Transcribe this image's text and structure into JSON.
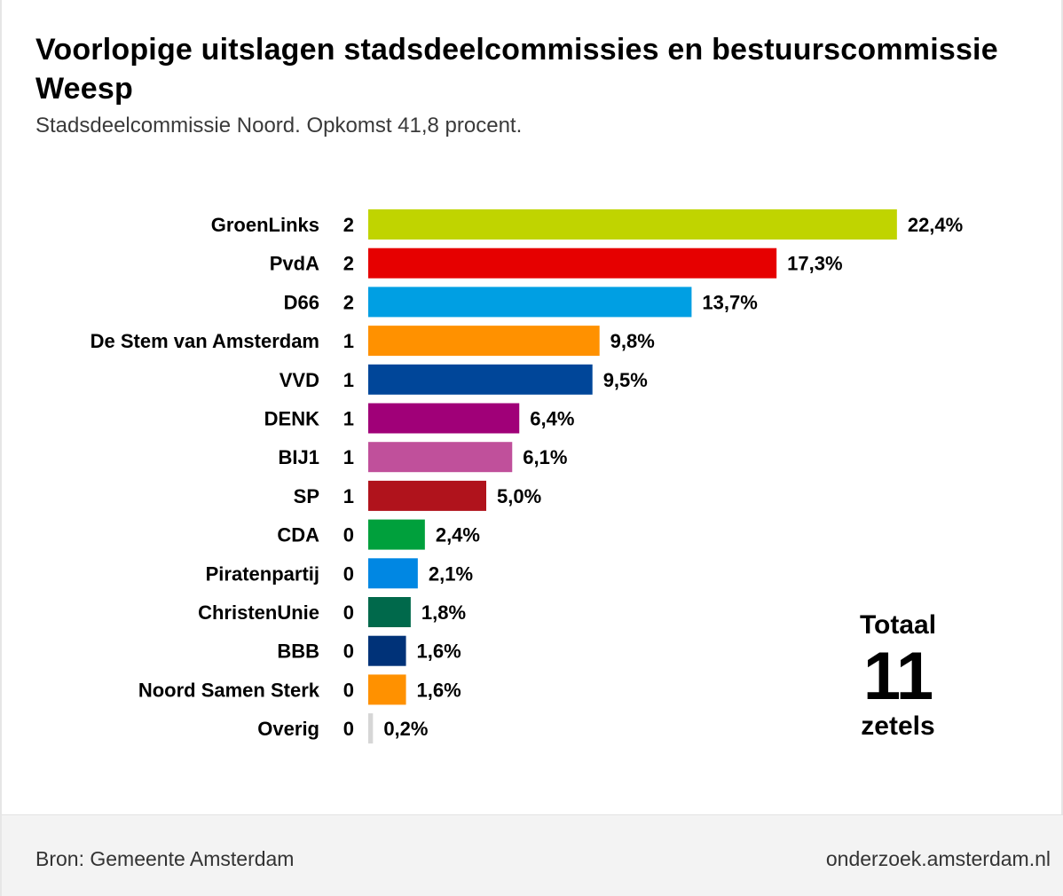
{
  "header": {
    "title": "Voorlopige uitslagen stadsdeelcommissies en bestuurscommissie Weesp",
    "subtitle": "Stadsdeelcommissie Noord. Opkomst 41,8 procent."
  },
  "totals": {
    "label": "Totaal",
    "value": "11",
    "unit": "zetels"
  },
  "footer": {
    "source": "Bron: Gemeente Amsterdam",
    "link": "onderzoek.amsterdam.nl"
  },
  "chart_data": {
    "type": "bar",
    "orientation": "horizontal",
    "categories": [
      "GroenLinks",
      "PvdA",
      "D66",
      "De Stem van Amsterdam",
      "VVD",
      "DENK",
      "BIJ1",
      "SP",
      "CDA",
      "Piratenpartij",
      "ChristenUnie",
      "BBB",
      "Noord Samen Sterk",
      "Overig"
    ],
    "seats": [
      "2",
      "2",
      "2",
      "1",
      "1",
      "1",
      "1",
      "1",
      "0",
      "0",
      "0",
      "0",
      "0",
      "0"
    ],
    "values": [
      22.4,
      17.3,
      13.7,
      9.8,
      9.5,
      6.4,
      6.1,
      5.0,
      2.4,
      2.1,
      1.8,
      1.6,
      1.6,
      0.2
    ],
    "value_labels": [
      "22,4%",
      "17,3%",
      "13,7%",
      "9,8%",
      "9,5%",
      "6,4%",
      "6,1%",
      "5,0%",
      "2,4%",
      "2,1%",
      "1,8%",
      "1,6%",
      "1,6%",
      "0,2%"
    ],
    "colors": [
      "#c0d400",
      "#e60000",
      "#009fe3",
      "#ff9100",
      "#004699",
      "#a00078",
      "#c0509b",
      "#b0131c",
      "#00a03c",
      "#0087e3",
      "#00694b",
      "#003278",
      "#ff9100",
      "#d6d6d6"
    ],
    "grid": false,
    "legend": "none"
  }
}
